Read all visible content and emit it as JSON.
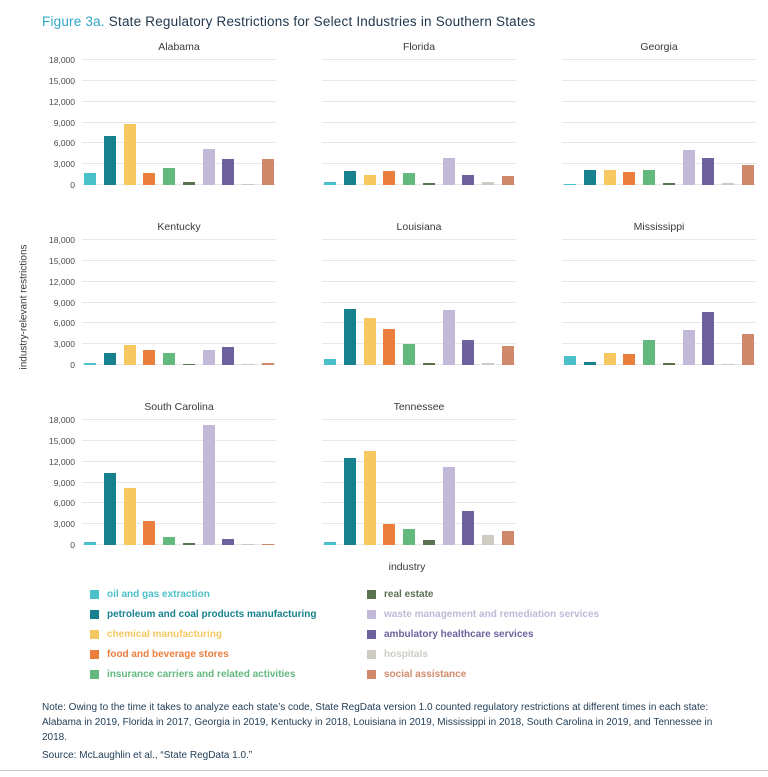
{
  "figure": {
    "label": "Figure 3a.",
    "title": "State Regulatory Restrictions for Select Industries in Southern States"
  },
  "colors": {
    "figure_label_accent": "#2fa8c7",
    "title_text": "#22384d",
    "note_text": "#1f3c55",
    "gridline": "#e7e7e7"
  },
  "chart_data": {
    "type": "bar",
    "title": "State Regulatory Restrictions for Select Industries in Southern States",
    "xlabel": "industry",
    "ylabel": "industry-relevant restrictions",
    "ylim": [
      0,
      18000
    ],
    "grid": true,
    "legend_position": "bottom",
    "yticks": [
      0,
      3000,
      6000,
      9000,
      12000,
      15000,
      18000
    ],
    "ytick_labels": [
      "0",
      "3,000",
      "6,000",
      "9,000",
      "12,000",
      "15,000",
      "18,000"
    ],
    "industries": [
      {
        "name": "oil and gas extraction",
        "color": "#4cc0c9"
      },
      {
        "name": "petroleum and coal products manufacturing",
        "color": "#17818e"
      },
      {
        "name": "chemical manufacturing",
        "color": "#f6c861"
      },
      {
        "name": "food and beverage stores",
        "color": "#ea7e3c"
      },
      {
        "name": "insurance carriers and related activities",
        "color": "#63b87d"
      },
      {
        "name": "real estate",
        "color": "#5b7251"
      },
      {
        "name": "waste management and remediation services",
        "color": "#c2b8d8"
      },
      {
        "name": "ambulatory healthcare services",
        "color": "#6e629e"
      },
      {
        "name": "hospitals",
        "color": "#cecbc3"
      },
      {
        "name": "social assistance",
        "color": "#d08a6b"
      }
    ],
    "panels": [
      {
        "state": "Alabama",
        "values": [
          1700,
          7000,
          8800,
          1700,
          2500,
          400,
          5200,
          3700,
          150,
          3800
        ]
      },
      {
        "state": "Florida",
        "values": [
          400,
          2000,
          1400,
          2000,
          1700,
          250,
          3900,
          1400,
          500,
          1300
        ]
      },
      {
        "state": "Georgia",
        "values": [
          150,
          2100,
          2200,
          1900,
          2200,
          350,
          5100,
          3900,
          250,
          2900
        ]
      },
      {
        "state": "Kentucky",
        "values": [
          300,
          1700,
          2900,
          2100,
          1800,
          200,
          2200,
          2600,
          150,
          250
        ]
      },
      {
        "state": "Louisiana",
        "values": [
          800,
          8100,
          6700,
          5200,
          3000,
          250,
          7900,
          3600,
          350,
          2700
        ]
      },
      {
        "state": "Mississippi",
        "values": [
          1300,
          500,
          1700,
          1600,
          3600,
          250,
          5100,
          7600,
          150,
          4400
        ]
      },
      {
        "state": "South Carolina",
        "values": [
          500,
          10300,
          8200,
          3400,
          1100,
          350,
          17300,
          900,
          150,
          200
        ]
      },
      {
        "state": "Tennessee",
        "values": [
          400,
          12600,
          13500,
          3000,
          2300,
          700,
          11200,
          4900,
          1500,
          2000
        ]
      }
    ]
  },
  "legend": {
    "columns": [
      [
        0,
        1,
        2,
        3,
        4
      ],
      [
        5,
        6,
        7,
        8,
        9
      ]
    ]
  },
  "note": "Note: Owing to the time it takes to analyze each state’s code, State RegData version 1.0 counted regulatory restrictions at different times in each state: Alabama in 2019, Florida in 2017, Georgia in 2019, Kentucky in 2018, Louisiana in 2019, Mississippi in 2018, South Carolina in 2019, and Tennessee in 2018.",
  "source": "Source: McLaughlin et al., “State RegData 1.0.”"
}
